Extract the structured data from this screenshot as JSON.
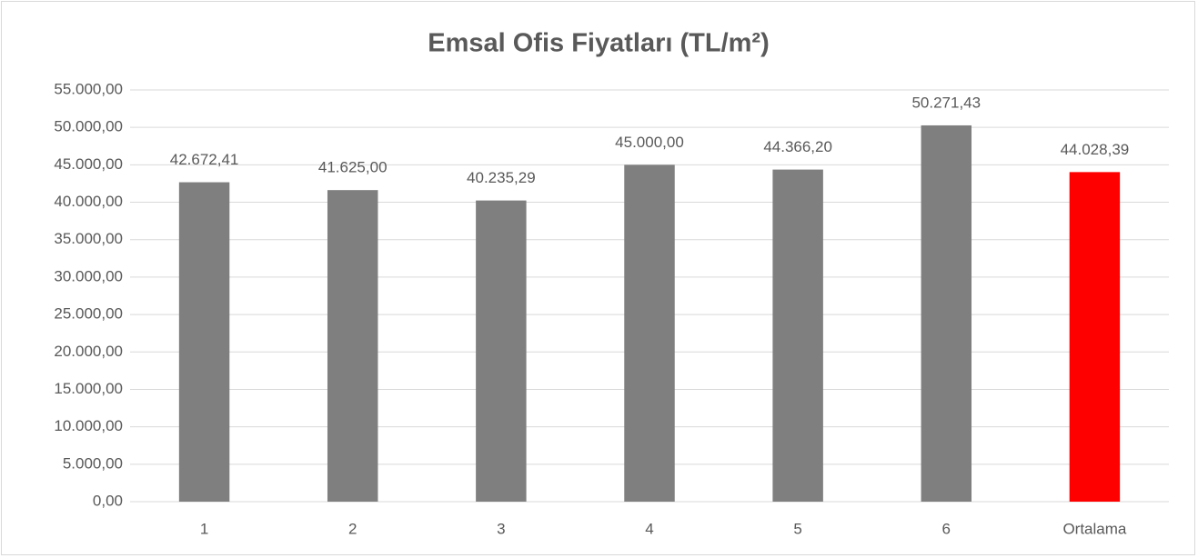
{
  "chart_data": {
    "type": "bar",
    "title": "Emsal Ofis Fiyatları (TL/m²)",
    "categories": [
      "1",
      "2",
      "3",
      "4",
      "5",
      "6",
      "Ortalama"
    ],
    "values": [
      42672.41,
      41625,
      40235.29,
      45000,
      44366.2,
      50271.43,
      44028.39
    ],
    "value_labels": [
      "42.672,41",
      "41.625,00",
      "40.235,29",
      "45.000,00",
      "44.366,20",
      "50.271,43",
      "44.028,39"
    ],
    "colors": [
      "#7f7f7f",
      "#7f7f7f",
      "#7f7f7f",
      "#7f7f7f",
      "#7f7f7f",
      "#7f7f7f",
      "#ff0000"
    ],
    "ylim": [
      0,
      55000
    ],
    "yticks": [
      {
        "value": 0,
        "label": "0,00"
      },
      {
        "value": 5000,
        "label": "5.000,00"
      },
      {
        "value": 10000,
        "label": "10.000,00"
      },
      {
        "value": 15000,
        "label": "15.000,00"
      },
      {
        "value": 20000,
        "label": "20.000,00"
      },
      {
        "value": 25000,
        "label": "25.000,00"
      },
      {
        "value": 30000,
        "label": "30.000,00"
      },
      {
        "value": 35000,
        "label": "35.000,00"
      },
      {
        "value": 40000,
        "label": "40.000,00"
      },
      {
        "value": 45000,
        "label": "45.000,00"
      },
      {
        "value": 50000,
        "label": "50.000,00"
      },
      {
        "value": 55000,
        "label": "55.000,00"
      }
    ],
    "grid": true
  }
}
